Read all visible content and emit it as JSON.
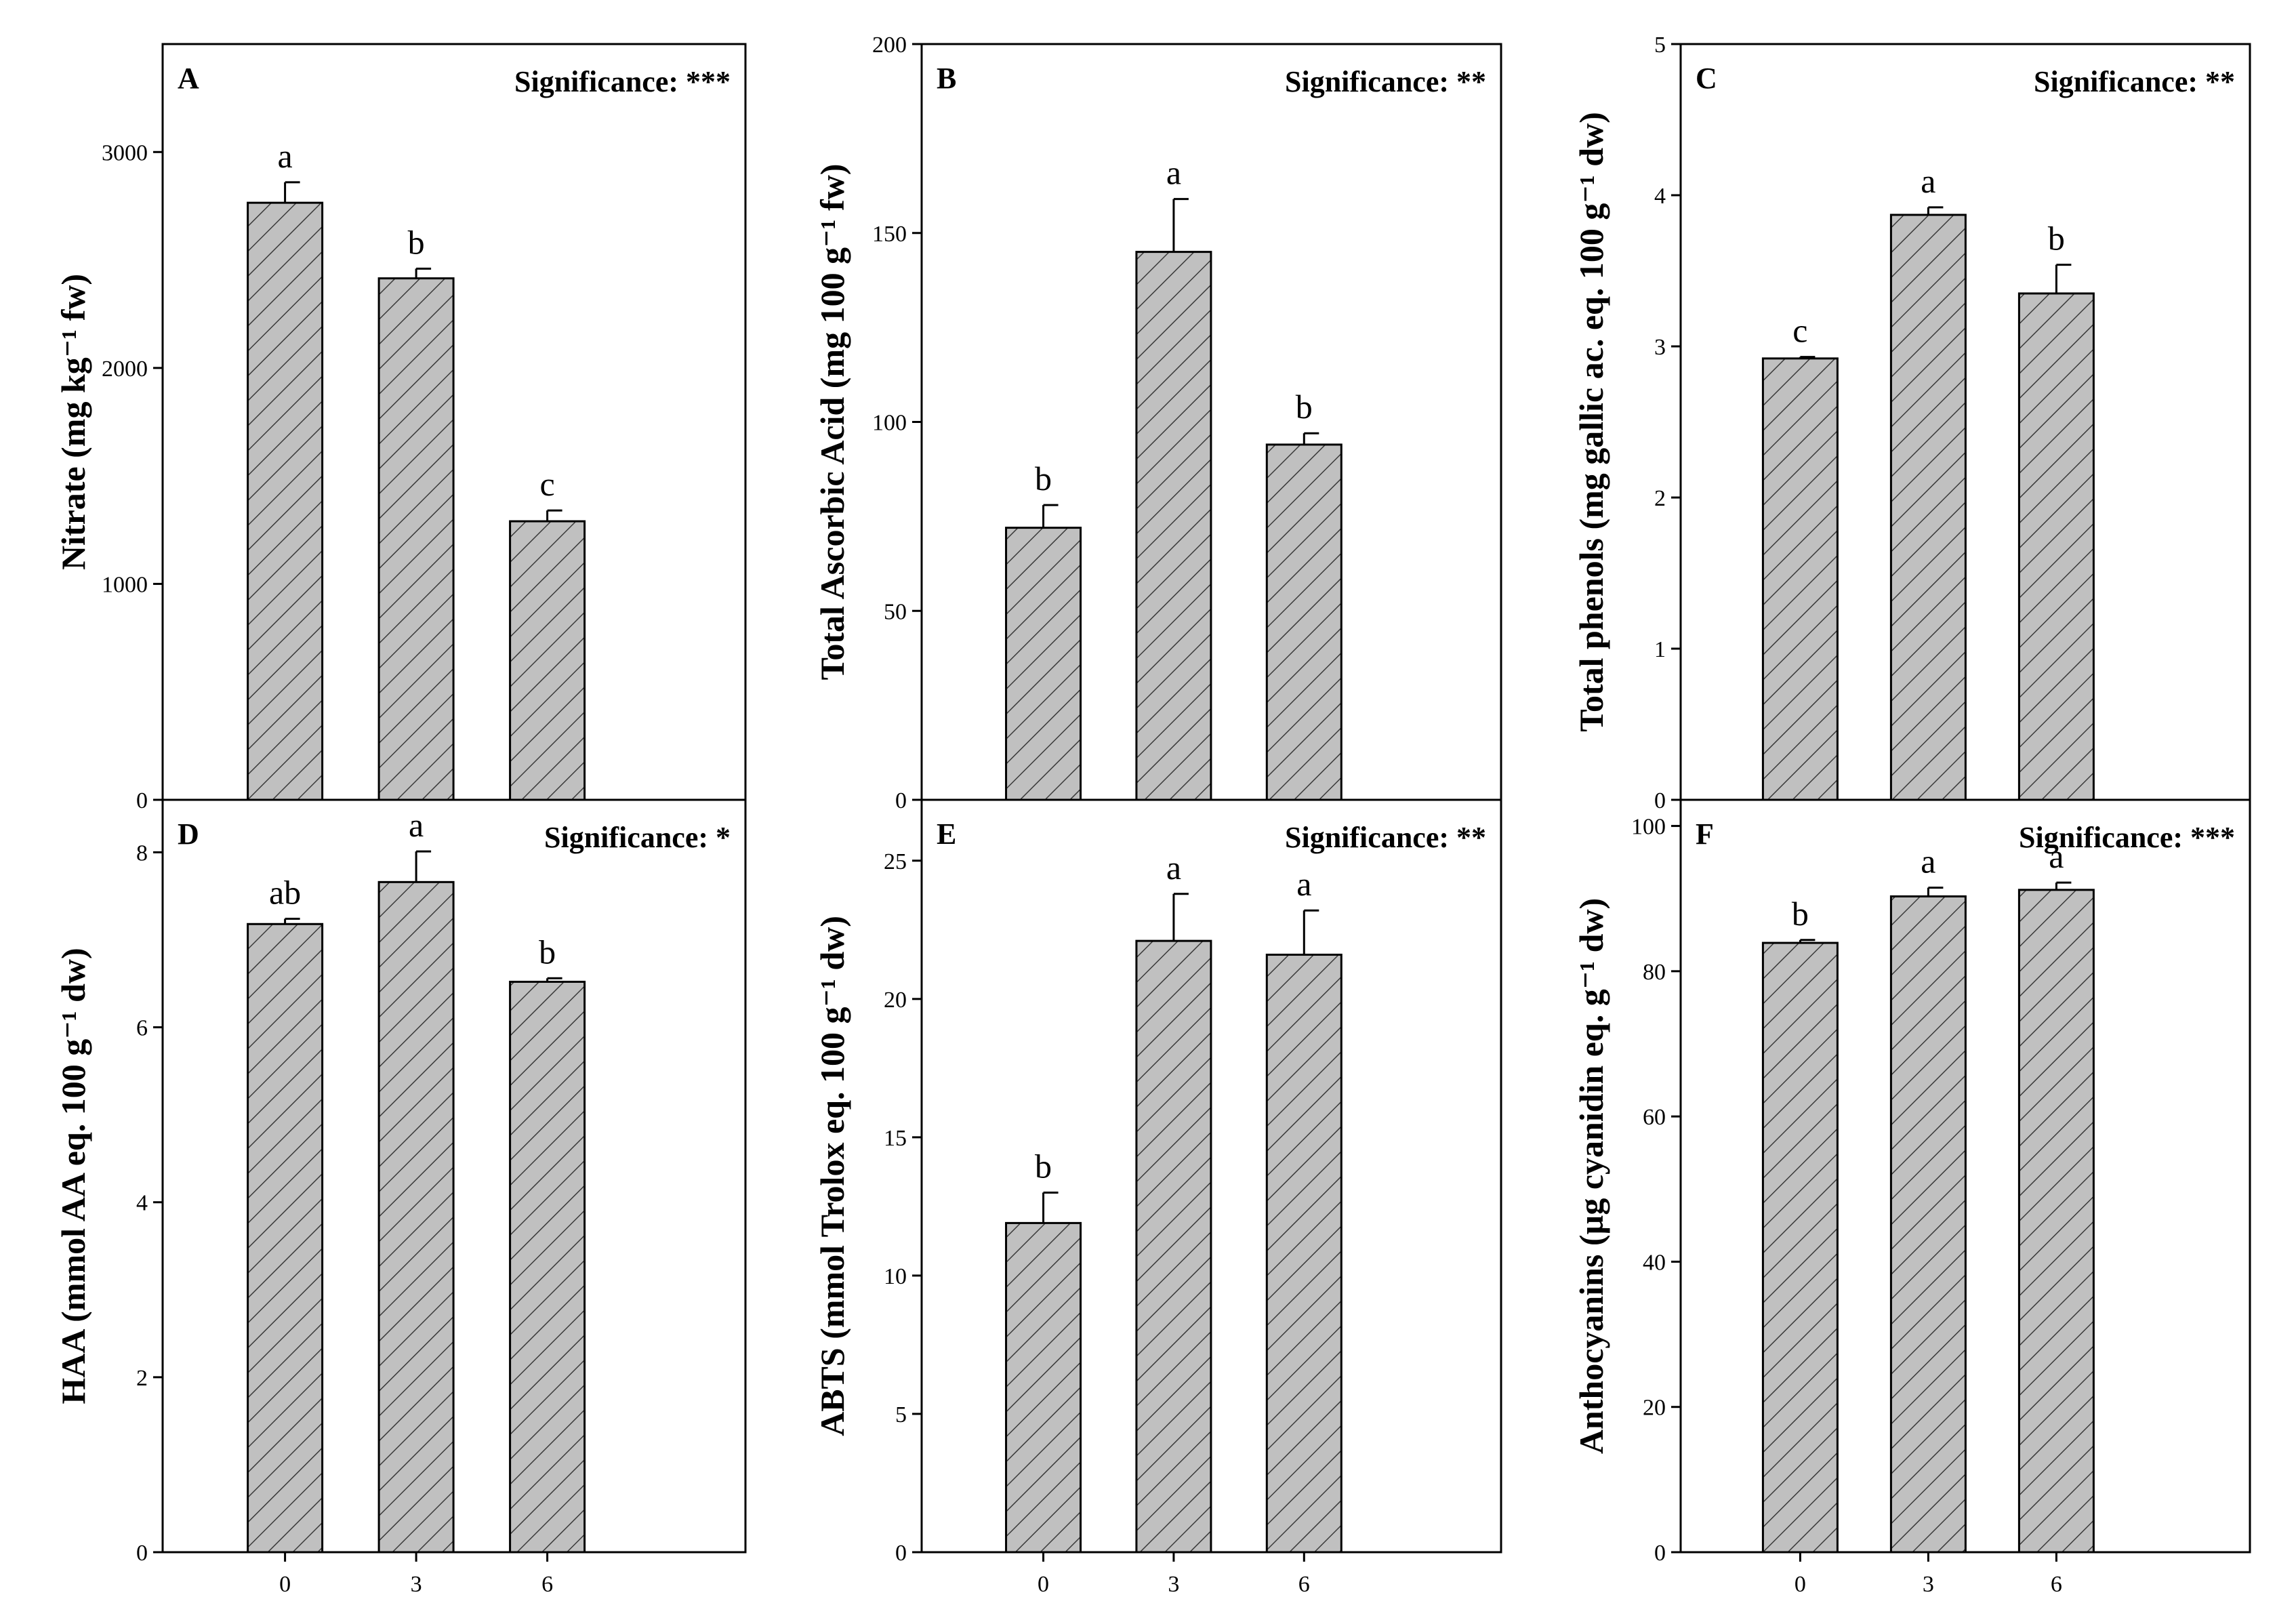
{
  "chart_data": [
    {
      "type": "bar",
      "panel": "A",
      "significance": "Significance: ***",
      "ylabel": "Nitrate (mg kg⁻¹ fw)",
      "ylim": [
        0,
        3000
      ],
      "yticks": [
        0,
        1000,
        2000,
        3000
      ],
      "categories": [
        "0",
        "3",
        "6"
      ],
      "values": [
        2765,
        2415,
        1290
      ],
      "errors": [
        95,
        45,
        50
      ],
      "letters": [
        "a",
        "b",
        "c"
      ]
    },
    {
      "type": "bar",
      "panel": "B",
      "significance": "Significance: **",
      "ylabel": "Total Ascorbic Acid (mg 100 g⁻¹ fw)",
      "ylim": [
        0,
        200
      ],
      "yticks": [
        0,
        50,
        100,
        150,
        200
      ],
      "categories": [
        "0",
        "3",
        "6"
      ],
      "values": [
        72,
        145,
        94
      ],
      "errors": [
        6,
        14,
        3
      ],
      "letters": [
        "b",
        "a",
        "b"
      ]
    },
    {
      "type": "bar",
      "panel": "C",
      "significance": "Significance: **",
      "ylabel": "Total phenols (mg gallic ac. eq. 100 g⁻¹ dw)",
      "ylim": [
        0,
        5
      ],
      "yticks": [
        0,
        1,
        2,
        3,
        4,
        5
      ],
      "categories": [
        "0",
        "3",
        "6"
      ],
      "values": [
        2.92,
        3.87,
        3.35
      ],
      "errors": [
        0.01,
        0.05,
        0.19
      ],
      "letters": [
        "c",
        "a",
        "b"
      ]
    },
    {
      "type": "bar",
      "panel": "D",
      "significance": "Significance: *",
      "ylabel": "HAA (mmol AA eq. 100 g⁻¹ dw)",
      "ylim": [
        0,
        8
      ],
      "yticks": [
        0,
        2,
        4,
        6,
        8
      ],
      "categories": [
        "0",
        "3",
        "6"
      ],
      "values": [
        7.18,
        7.66,
        6.52
      ],
      "errors": [
        0.06,
        0.35,
        0.04
      ],
      "letters": [
        "ab",
        "a",
        "b"
      ]
    },
    {
      "type": "bar",
      "panel": "E",
      "significance": "Significance: **",
      "ylabel": "ABTS (mmol Trolox eq. 100 g⁻¹ dw)",
      "ylim": [
        0,
        25
      ],
      "yticks": [
        0,
        5,
        10,
        15,
        20,
        25
      ],
      "categories": [
        "0",
        "3",
        "6"
      ],
      "values": [
        11.9,
        22.1,
        21.6
      ],
      "errors": [
        1.1,
        1.7,
        1.6
      ],
      "letters": [
        "b",
        "a",
        "a"
      ]
    },
    {
      "type": "bar",
      "panel": "F",
      "significance": "Significance: ***",
      "ylabel": "Anthocyanins (µg cyanidin eq. g⁻¹ dw)",
      "ylim": [
        0,
        100
      ],
      "yticks": [
        0,
        20,
        40,
        60,
        80,
        100
      ],
      "categories": [
        "0",
        "3",
        "6"
      ],
      "values": [
        83.9,
        90.3,
        91.2
      ],
      "errors": [
        0.4,
        1.2,
        1.0
      ],
      "letters": [
        "b",
        "a",
        "a"
      ]
    }
  ],
  "colors": {
    "bar_fill": "#c0c0c0",
    "hatch": "#3a3a3a",
    "axis": "#000000"
  }
}
